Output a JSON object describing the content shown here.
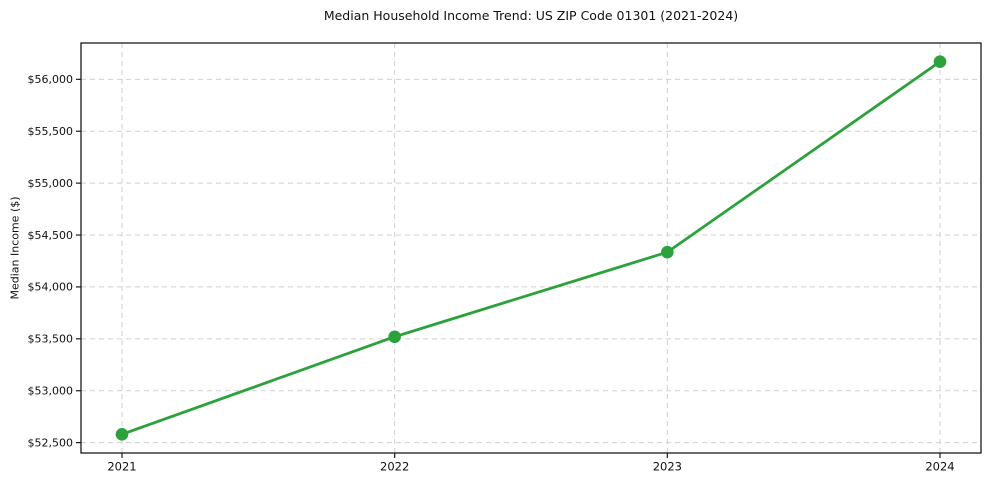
{
  "title": "Median Household Income Trend: US ZIP Code 01301 (2021-2024)",
  "chart_data": {
    "type": "line",
    "categories": [
      "2021",
      "2022",
      "2023",
      "2024"
    ],
    "values": [
      52580,
      53520,
      54335,
      56170
    ],
    "title": "Median Household Income Trend: US ZIP Code 01301 (2021-2024)",
    "xlabel": "",
    "ylabel": "Median Income ($)",
    "ylim": [
      52400,
      56350
    ],
    "yticks": [
      52500,
      53000,
      53500,
      54000,
      54500,
      55000,
      55500,
      56000
    ],
    "ytick_labels": [
      "$52,500",
      "$53,000",
      "$53,500",
      "$54,000",
      "$54,500",
      "$55,000",
      "$55,500",
      "$56,000"
    ],
    "xtick_labels": [
      "2021",
      "2022",
      "2023",
      "2024"
    ],
    "grid": true,
    "grid_style": "dashed",
    "legend_position": "none",
    "line_color": "#2da13c",
    "marker": "circle",
    "marker_color": "#2da13c",
    "grid_color": "#cfcfcf",
    "spine_color": "#1a1a1a",
    "background_color": "#ffffff"
  }
}
